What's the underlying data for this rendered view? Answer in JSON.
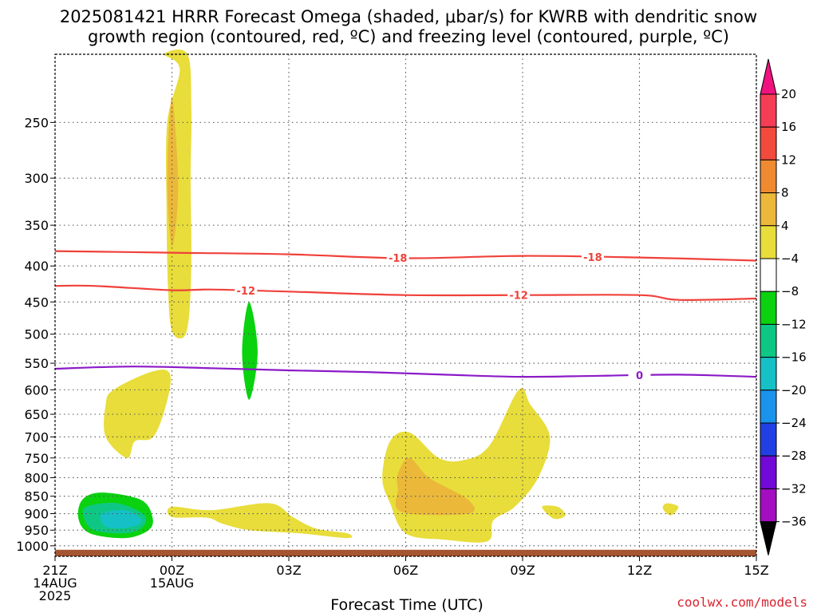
{
  "chart_data": {
    "type": "time-height-contour",
    "title_line1": "2025081421 HRRR Forecast Omega (shaded, μbar/s) for KWRB with dendritic snow",
    "title_line2": "growth region (contoured, red, ºC) and freezing level (contoured, purple, ºC)",
    "xlabel": "Forecast Time (UTC)",
    "x_ticks": [
      {
        "hour": 0,
        "lines": [
          "21Z",
          "14AUG",
          "2025"
        ]
      },
      {
        "hour": 3,
        "lines": [
          "00Z",
          "15AUG"
        ]
      },
      {
        "hour": 6,
        "lines": [
          "03Z"
        ]
      },
      {
        "hour": 9,
        "lines": [
          "06Z"
        ]
      },
      {
        "hour": 12,
        "lines": [
          "09Z"
        ]
      },
      {
        "hour": 15,
        "lines": [
          "12Z"
        ]
      },
      {
        "hour": 18,
        "lines": [
          "15Z"
        ]
      }
    ],
    "xlim_hours": [
      0,
      18
    ],
    "y_scale": "log-pressure",
    "ylim_hpa": [
      1035,
      200
    ],
    "y_ticks": [
      250,
      300,
      350,
      400,
      450,
      500,
      550,
      600,
      650,
      700,
      750,
      800,
      850,
      900,
      950,
      1000
    ],
    "surface_pressure_hpa": 1013,
    "grid": true,
    "colorbar": {
      "labels": [
        "20",
        "16",
        "12",
        "8",
        "4",
        "−4",
        "−8",
        "−12",
        "−16",
        "−20",
        "−24",
        "−28",
        "−32",
        "−36"
      ],
      "colors": [
        "#f53d56",
        "#f24a3c",
        "#ef8a31",
        "#ebb83a",
        "#e8dd3a",
        "#ffffff",
        "#0ad20f",
        "#0fc785",
        "#15c1c6",
        "#1993ec",
        "#2140e4",
        "#7109d9",
        "#a30ec1",
        "#aaaaaa"
      ],
      "top_arrow_color": "#ef127f",
      "bottom_arrow_color": "#000000"
    },
    "omega_shading": [
      {
        "level_min": 4,
        "color": "#e8dd3a",
        "points": [
          [
            3.2,
            210
          ],
          [
            2.8,
            200
          ],
          [
            3.4,
            200
          ],
          [
            3.5,
            240
          ],
          [
            3.48,
            300
          ],
          [
            3.5,
            390
          ],
          [
            3.44,
            470
          ],
          [
            3.3,
            505
          ],
          [
            3.0,
            495
          ],
          [
            2.9,
            430
          ],
          [
            2.86,
            330
          ],
          [
            2.88,
            250
          ]
        ]
      },
      {
        "level_min": 8,
        "color": "#ebb83a",
        "points": [
          [
            3.0,
            230
          ],
          [
            3.16,
            310
          ],
          [
            3.0,
            375
          ],
          [
            2.88,
            300
          ]
        ]
      },
      {
        "level_min": -4,
        "color": "#0ad20f",
        "points": [
          [
            4.98,
            450
          ],
          [
            5.2,
            530
          ],
          [
            4.98,
            620
          ],
          [
            4.8,
            530
          ]
        ]
      },
      {
        "level_min": 4,
        "color": "#e8dd3a",
        "points": [
          [
            1.5,
            600
          ],
          [
            2.5,
            565
          ],
          [
            2.95,
            570
          ],
          [
            2.85,
            630
          ],
          [
            2.52,
            700
          ],
          [
            2.05,
            710
          ],
          [
            1.85,
            750
          ],
          [
            1.3,
            700
          ],
          [
            1.3,
            630
          ]
        ]
      },
      {
        "level_min": -4,
        "color": "#0ad20f",
        "points": [
          [
            0.7,
            860
          ],
          [
            1.2,
            840
          ],
          [
            2.2,
            860
          ],
          [
            2.5,
            910
          ],
          [
            2.4,
            950
          ],
          [
            1.8,
            975
          ],
          [
            0.9,
            960
          ],
          [
            0.6,
            915
          ]
        ]
      },
      {
        "level_min": -8,
        "color": "#0fc785",
        "points": [
          [
            0.8,
            880
          ],
          [
            1.6,
            870
          ],
          [
            2.3,
            905
          ],
          [
            2.2,
            945
          ],
          [
            1.7,
            960
          ],
          [
            1.0,
            950
          ],
          [
            0.75,
            915
          ]
        ]
      },
      {
        "level_min": -12,
        "color": "#15c1c6",
        "points": [
          [
            1.2,
            900
          ],
          [
            1.8,
            890
          ],
          [
            2.2,
            915
          ],
          [
            2.1,
            935
          ],
          [
            1.6,
            945
          ],
          [
            1.25,
            935
          ]
        ]
      },
      {
        "level_min": 4,
        "color": "#e8dd3a",
        "points": [
          [
            3.0,
            880
          ],
          [
            4.0,
            890
          ],
          [
            5.5,
            870
          ],
          [
            6.1,
            910
          ],
          [
            6.7,
            945
          ],
          [
            7.5,
            960
          ],
          [
            7.5,
            975
          ],
          [
            6.3,
            960
          ],
          [
            5.0,
            950
          ],
          [
            4.3,
            930
          ],
          [
            3.9,
            912
          ],
          [
            3.0,
            910
          ]
        ]
      },
      {
        "level_min": 4,
        "color": "#e8dd3a",
        "points": [
          [
            8.6,
            710
          ],
          [
            9.1,
            690
          ],
          [
            9.85,
            750
          ],
          [
            10.5,
            755
          ],
          [
            11.15,
            720
          ],
          [
            11.9,
            600
          ],
          [
            12.2,
            630
          ],
          [
            12.7,
            700
          ],
          [
            12.4,
            800
          ],
          [
            11.8,
            880
          ],
          [
            11.25,
            920
          ],
          [
            11.1,
            985
          ],
          [
            10.0,
            980
          ],
          [
            9.0,
            960
          ],
          [
            8.6,
            870
          ],
          [
            8.4,
            800
          ]
        ]
      },
      {
        "level_min": 8,
        "color": "#ebb83a",
        "points": [
          [
            8.8,
            790
          ],
          [
            9.1,
            750
          ],
          [
            9.6,
            800
          ],
          [
            10.6,
            860
          ],
          [
            10.6,
            900
          ],
          [
            8.9,
            895
          ],
          [
            8.8,
            830
          ]
        ]
      },
      {
        "level_min": 4,
        "color": "#e8dd3a",
        "points": [
          [
            12.5,
            880
          ],
          [
            12.9,
            880
          ],
          [
            13.1,
            905
          ],
          [
            12.8,
            915
          ]
        ]
      },
      {
        "level_min": 4,
        "color": "#e8dd3a",
        "points": [
          [
            15.7,
            870
          ],
          [
            16.0,
            880
          ],
          [
            15.8,
            905
          ],
          [
            15.6,
            885
          ]
        ]
      }
    ],
    "temperature_contours": [
      {
        "value": -18,
        "color": "#f0413a",
        "label": "-18",
        "label_at_hours": [
          8.8,
          13.8
        ],
        "points": [
          [
            0,
            381
          ],
          [
            3,
            383
          ],
          [
            6,
            385
          ],
          [
            9,
            390
          ],
          [
            12,
            387
          ],
          [
            15,
            389
          ],
          [
            18,
            393
          ]
        ]
      },
      {
        "value": -12,
        "color": "#f0413a",
        "label": "-12",
        "label_at_hours": [
          4.9,
          11.9
        ],
        "points": [
          [
            0,
            427
          ],
          [
            1,
            427
          ],
          [
            3,
            433
          ],
          [
            4,
            432
          ],
          [
            6,
            435
          ],
          [
            9,
            440
          ],
          [
            12,
            440
          ],
          [
            15,
            440
          ],
          [
            16,
            447
          ],
          [
            18,
            445
          ]
        ]
      },
      {
        "value": 0,
        "color": "#8c1ac7",
        "label": "0",
        "label_at_hours": [
          15.0
        ],
        "points": [
          [
            0,
            560
          ],
          [
            2,
            556
          ],
          [
            4,
            559
          ],
          [
            6,
            563
          ],
          [
            8,
            566
          ],
          [
            10,
            571
          ],
          [
            12,
            575
          ],
          [
            14,
            573
          ],
          [
            16,
            571
          ],
          [
            18,
            575
          ]
        ]
      }
    ],
    "credit": "coolwx.com/models"
  }
}
